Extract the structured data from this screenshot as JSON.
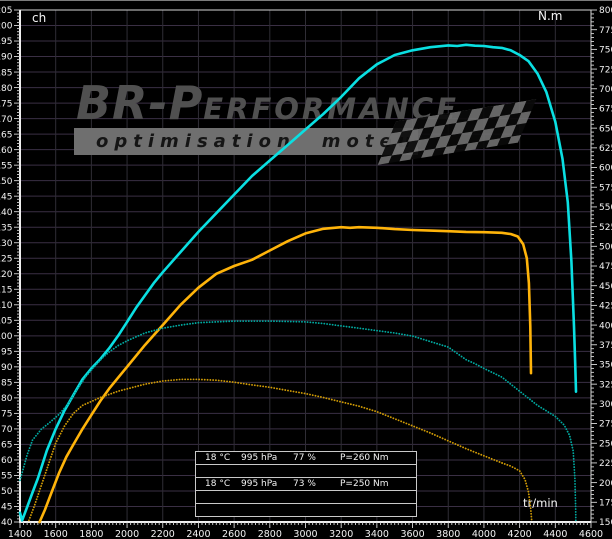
{
  "branding": {
    "logo_main": "BR-P",
    "logo_rest": "ERFORMANCE",
    "tagline_word1": "optimisation",
    "tagline_word2": "moteur"
  },
  "conditions": {
    "runs": [
      {
        "temperature": "18 °C",
        "pressure": "995 hPa",
        "humidity": "77 %",
        "load": "P=260 Nm"
      },
      {
        "temperature": "18 °C",
        "pressure": "995 hPa",
        "humidity": "73 %",
        "load": "P=250 Nm"
      }
    ]
  },
  "chart_data": {
    "type": "line",
    "title": "",
    "background": "#000000",
    "x_axis": {
      "label": "tr/min",
      "min": 1400,
      "max": 4600,
      "major_step": 200,
      "minor_step": 20
    },
    "y_left_axis": {
      "label": "ch",
      "min": 40,
      "max": 205,
      "major_step": 5,
      "minor_step": 1
    },
    "y_right_axis": {
      "label": "N.m",
      "min": 150,
      "max": 800,
      "major_step": 25,
      "minor_step": 5
    },
    "grid": {
      "h_color": "#3a2f44",
      "v_color": "#2f2d35",
      "border_color": "#d6d6d6",
      "tick_color": "#d9d9d9"
    },
    "series": [
      {
        "name": "puissance-run-1",
        "unit": "ch",
        "axis": "left",
        "style": "solid",
        "color": "#0adfe2",
        "points": [
          [
            1400,
            43
          ],
          [
            1412,
            40.5
          ],
          [
            1435,
            44
          ],
          [
            1470,
            49.5
          ],
          [
            1500,
            54
          ],
          [
            1550,
            63
          ],
          [
            1600,
            70
          ],
          [
            1650,
            76
          ],
          [
            1700,
            81
          ],
          [
            1750,
            86
          ],
          [
            1800,
            89.5
          ],
          [
            1850,
            92.5
          ],
          [
            1900,
            96
          ],
          [
            1950,
            100
          ],
          [
            2000,
            104.5
          ],
          [
            2050,
            109
          ],
          [
            2100,
            113
          ],
          [
            2150,
            117
          ],
          [
            2200,
            120.5
          ],
          [
            2300,
            127
          ],
          [
            2400,
            133.5
          ],
          [
            2500,
            139.5
          ],
          [
            2600,
            145.5
          ],
          [
            2700,
            151.5
          ],
          [
            2800,
            156.5
          ],
          [
            2900,
            161.5
          ],
          [
            3000,
            166.5
          ],
          [
            3100,
            171.5
          ],
          [
            3200,
            177
          ],
          [
            3300,
            183
          ],
          [
            3400,
            187.5
          ],
          [
            3500,
            190.5
          ],
          [
            3600,
            192
          ],
          [
            3700,
            193
          ],
          [
            3750,
            193.3
          ],
          [
            3800,
            193.6
          ],
          [
            3850,
            193.4
          ],
          [
            3900,
            193.8
          ],
          [
            3950,
            193.5
          ],
          [
            4000,
            193.4
          ],
          [
            4050,
            193
          ],
          [
            4100,
            192.8
          ],
          [
            4150,
            192
          ],
          [
            4200,
            190.5
          ],
          [
            4250,
            188.5
          ],
          [
            4300,
            184.5
          ],
          [
            4350,
            178.5
          ],
          [
            4400,
            169
          ],
          [
            4440,
            157
          ],
          [
            4470,
            143
          ],
          [
            4490,
            124
          ],
          [
            4505,
            103
          ],
          [
            4512,
            90
          ],
          [
            4516,
            82
          ]
        ]
      },
      {
        "name": "puissance-run-2",
        "unit": "ch",
        "axis": "left",
        "style": "solid",
        "color": "#ffb40a",
        "points": [
          [
            1510,
            40
          ],
          [
            1540,
            44
          ],
          [
            1580,
            50
          ],
          [
            1620,
            56
          ],
          [
            1660,
            61
          ],
          [
            1700,
            65
          ],
          [
            1750,
            70
          ],
          [
            1800,
            74.5
          ],
          [
            1850,
            79
          ],
          [
            1900,
            83
          ],
          [
            1950,
            86.5
          ],
          [
            2000,
            90
          ],
          [
            2100,
            97
          ],
          [
            2200,
            103.5
          ],
          [
            2300,
            110
          ],
          [
            2400,
            115.5
          ],
          [
            2500,
            120
          ],
          [
            2600,
            122.5
          ],
          [
            2700,
            124.5
          ],
          [
            2800,
            127.5
          ],
          [
            2900,
            130.5
          ],
          [
            3000,
            133
          ],
          [
            3100,
            134.5
          ],
          [
            3200,
            135
          ],
          [
            3250,
            134.8
          ],
          [
            3300,
            135
          ],
          [
            3400,
            134.8
          ],
          [
            3500,
            134.4
          ],
          [
            3600,
            134.1
          ],
          [
            3700,
            133.9
          ],
          [
            3800,
            133.7
          ],
          [
            3900,
            133.5
          ],
          [
            4000,
            133.4
          ],
          [
            4100,
            133.2
          ],
          [
            4150,
            132.8
          ],
          [
            4190,
            132
          ],
          [
            4220,
            129.5
          ],
          [
            4240,
            125
          ],
          [
            4252,
            117
          ],
          [
            4260,
            103
          ],
          [
            4264,
            88
          ]
        ]
      },
      {
        "name": "couple-run-1",
        "unit": "N.m",
        "axis": "right",
        "style": "dotted",
        "color": "#00a89f",
        "points": [
          [
            1400,
            203
          ],
          [
            1440,
            235
          ],
          [
            1470,
            254
          ],
          [
            1520,
            268
          ],
          [
            1570,
            277
          ],
          [
            1620,
            287
          ],
          [
            1670,
            300
          ],
          [
            1720,
            318
          ],
          [
            1770,
            335
          ],
          [
            1820,
            348
          ],
          [
            1860,
            358
          ],
          [
            1900,
            366
          ],
          [
            1950,
            374
          ],
          [
            2000,
            380
          ],
          [
            2100,
            390
          ],
          [
            2200,
            396
          ],
          [
            2300,
            400
          ],
          [
            2400,
            403
          ],
          [
            2500,
            404
          ],
          [
            2600,
            405
          ],
          [
            2700,
            405
          ],
          [
            2800,
            405
          ],
          [
            2900,
            404.5
          ],
          [
            3000,
            404
          ],
          [
            3100,
            402
          ],
          [
            3200,
            399
          ],
          [
            3300,
            396
          ],
          [
            3400,
            393
          ],
          [
            3500,
            390
          ],
          [
            3600,
            386
          ],
          [
            3700,
            379
          ],
          [
            3800,
            372
          ],
          [
            3850,
            364
          ],
          [
            3900,
            356
          ],
          [
            3950,
            351
          ],
          [
            4000,
            345
          ],
          [
            4100,
            334
          ],
          [
            4200,
            316
          ],
          [
            4300,
            298
          ],
          [
            4400,
            284
          ],
          [
            4450,
            273
          ],
          [
            4480,
            260
          ],
          [
            4500,
            240
          ],
          [
            4510,
            205
          ],
          [
            4514,
            165
          ],
          [
            4515,
            152
          ]
        ]
      },
      {
        "name": "couple-run-2",
        "unit": "N.m",
        "axis": "right",
        "style": "dotted",
        "color": "#cf9a05",
        "points": [
          [
            1450,
            152
          ],
          [
            1480,
            170
          ],
          [
            1510,
            190
          ],
          [
            1540,
            210
          ],
          [
            1570,
            230
          ],
          [
            1600,
            250
          ],
          [
            1650,
            272
          ],
          [
            1700,
            288
          ],
          [
            1750,
            298
          ],
          [
            1800,
            303
          ],
          [
            1850,
            308
          ],
          [
            1900,
            312
          ],
          [
            1950,
            316
          ],
          [
            2000,
            319
          ],
          [
            2100,
            325
          ],
          [
            2200,
            329
          ],
          [
            2300,
            331
          ],
          [
            2400,
            331
          ],
          [
            2500,
            330
          ],
          [
            2600,
            327.5
          ],
          [
            2700,
            324
          ],
          [
            2800,
            321
          ],
          [
            2900,
            317
          ],
          [
            3000,
            313
          ],
          [
            3100,
            308
          ],
          [
            3200,
            302.5
          ],
          [
            3300,
            297
          ],
          [
            3400,
            290
          ],
          [
            3500,
            281
          ],
          [
            3600,
            272
          ],
          [
            3700,
            263
          ],
          [
            3800,
            253
          ],
          [
            3900,
            243
          ],
          [
            4000,
            234
          ],
          [
            4100,
            225
          ],
          [
            4150,
            221
          ],
          [
            4200,
            215
          ],
          [
            4230,
            204
          ],
          [
            4250,
            188
          ],
          [
            4262,
            167
          ],
          [
            4268,
            150
          ]
        ]
      }
    ],
    "legend_position": "bottom-center-table",
    "grid_on": true
  }
}
